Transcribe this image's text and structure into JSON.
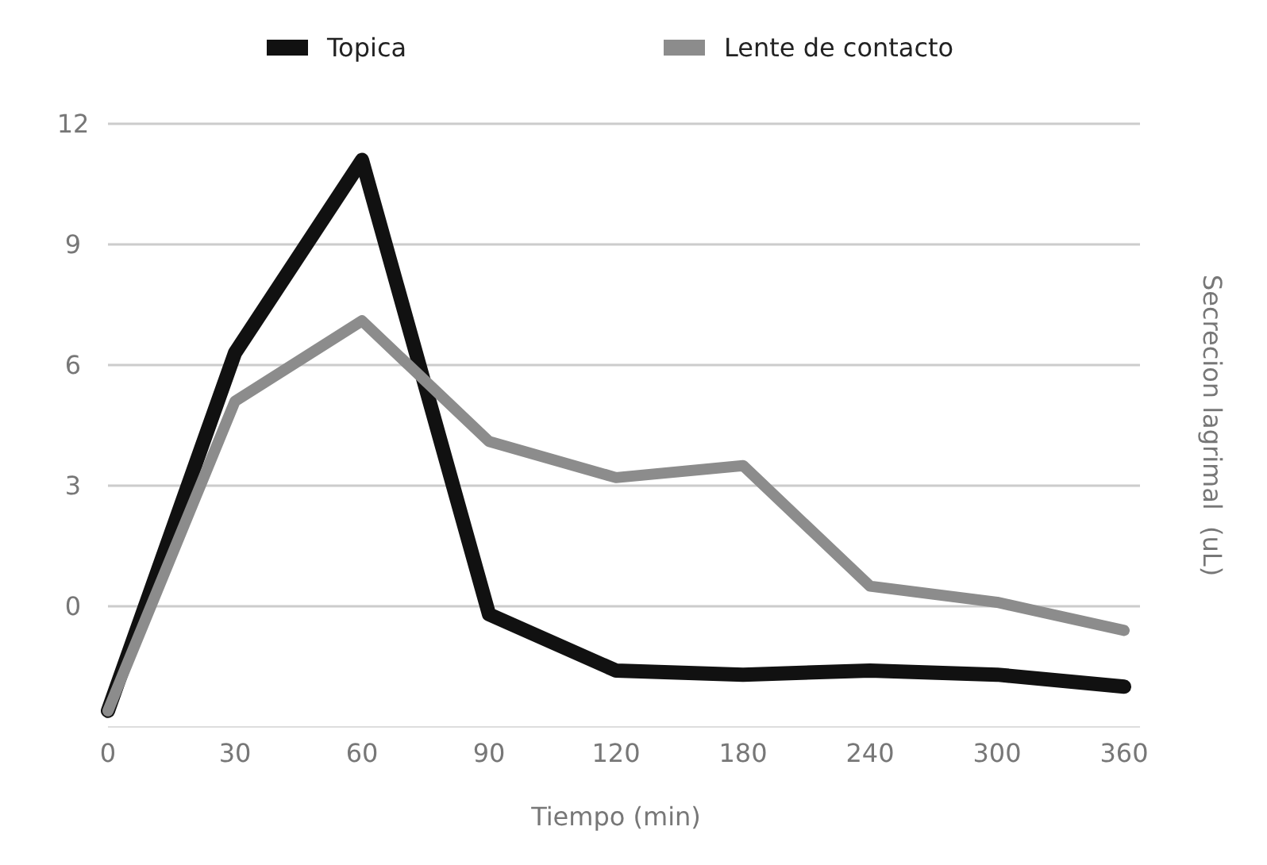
{
  "chart_data": {
    "type": "line",
    "xlabel": "Tiempo (min)",
    "ylabel": "Secrecion lagrimal  (uL)",
    "categories": [
      "0",
      "30",
      "60",
      "90",
      "120",
      "180",
      "240",
      "300",
      "360"
    ],
    "ylim": [
      -3,
      12
    ],
    "yticks": [
      0,
      3,
      6,
      9,
      12
    ],
    "grid": "y",
    "legend": "top",
    "marker": "none",
    "line_style": "solid",
    "series": [
      {
        "name": "Topica",
        "color": "#111111",
        "values": [
          -2.6,
          6.3,
          11.1,
          -0.2,
          -1.6,
          -1.7,
          -1.6,
          -1.7,
          -2.0
        ]
      },
      {
        "name": "Lente de contacto",
        "color": "#8c8c8c",
        "values": [
          -2.6,
          5.1,
          7.1,
          4.1,
          3.2,
          3.5,
          0.5,
          0.1,
          -0.6
        ]
      }
    ]
  }
}
